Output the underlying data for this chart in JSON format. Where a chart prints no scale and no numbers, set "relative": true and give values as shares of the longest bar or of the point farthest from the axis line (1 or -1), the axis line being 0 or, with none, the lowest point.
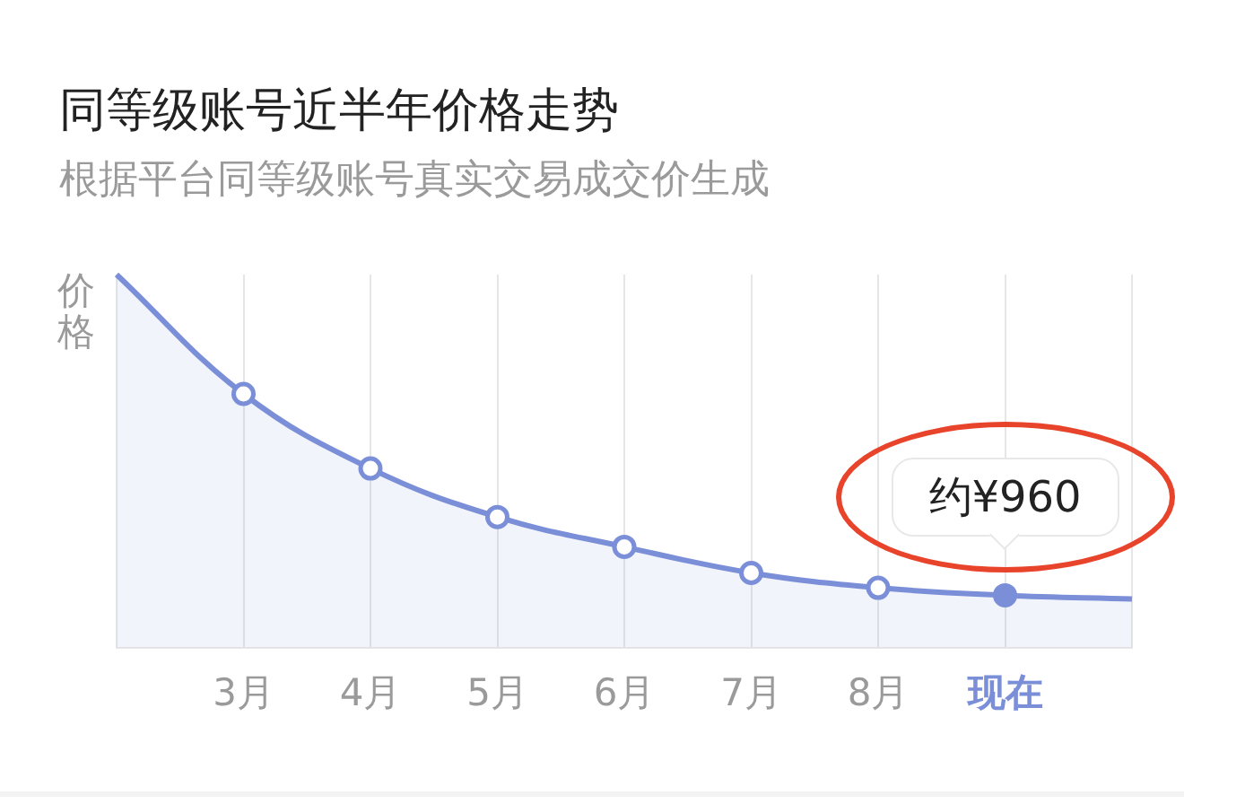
{
  "chart_data": {
    "type": "area",
    "title": "同等级账号近半年价格走势",
    "subtitle": "根据平台同等级账号真实交易成交价生成",
    "ylabel": "价格",
    "categories": [
      null,
      "3月",
      "4月",
      "5月",
      "6月",
      "7月",
      "8月",
      "现在",
      null
    ],
    "series": [
      {
        "color": "#7b8fd8",
        "values": [
          1,
          0.68,
          0.48,
          0.35,
          0.27,
          0.2,
          0.16,
          0.14,
          0.13
        ]
      }
    ],
    "relative": true,
    "annotations": [
      {
        "text": "约¥960",
        "x": "现在",
        "y": 0.14
      }
    ],
    "grid": "x",
    "marker": "circle"
  }
}
